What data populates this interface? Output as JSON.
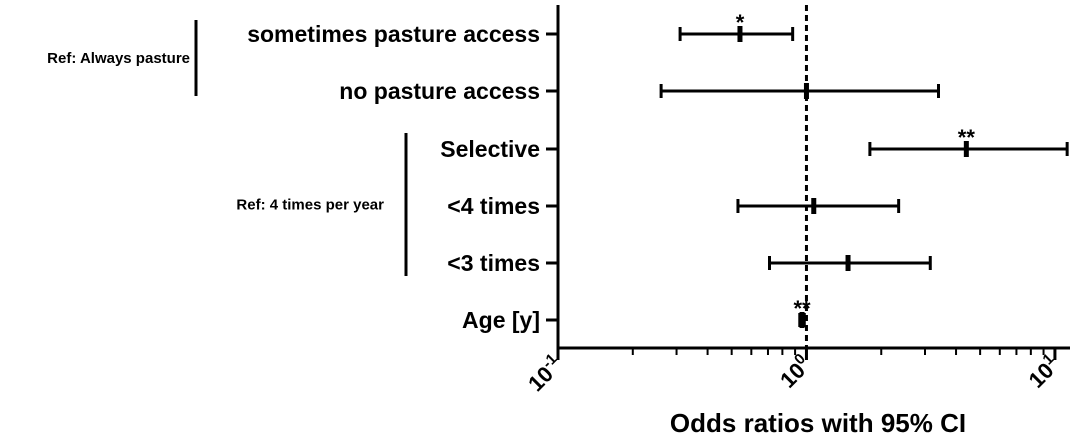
{
  "chart_data": {
    "type": "forest",
    "x_scale": "log",
    "xlim": [
      0.1,
      11.5
    ],
    "reference_line": 1,
    "xlabel": "Odds ratios with 95% CI",
    "x_ticks": [
      {
        "base": "10",
        "exp": "-1",
        "value": 0.1
      },
      {
        "base": "10",
        "exp": "0",
        "value": 1
      },
      {
        "base": "10",
        "exp": "1",
        "value": 10
      }
    ],
    "rows": [
      {
        "label": "sometimes pasture access",
        "or": 0.54,
        "ci_low": 0.31,
        "ci_high": 0.88,
        "sig": "*"
      },
      {
        "label": "no pasture access",
        "or": 1.0,
        "ci_low": 0.26,
        "ci_high": 3.4,
        "sig": ""
      },
      {
        "label": "Selective",
        "or": 4.4,
        "ci_low": 1.8,
        "ci_high": 11.2,
        "sig": "**"
      },
      {
        "label": "<4 times",
        "or": 1.07,
        "ci_low": 0.53,
        "ci_high": 2.35,
        "sig": ""
      },
      {
        "label": "<3 times",
        "or": 1.47,
        "ci_low": 0.71,
        "ci_high": 3.15,
        "sig": ""
      },
      {
        "label": "Age [y]",
        "or": 0.96,
        "ci_low": 0.94,
        "ci_high": 0.98,
        "sig": "**"
      }
    ],
    "groups": [
      {
        "label": "Ref: Always pasture",
        "rows": [
          0,
          1
        ]
      },
      {
        "label": "Ref:  4 times per year",
        "rows": [
          2,
          3,
          4
        ]
      }
    ]
  }
}
